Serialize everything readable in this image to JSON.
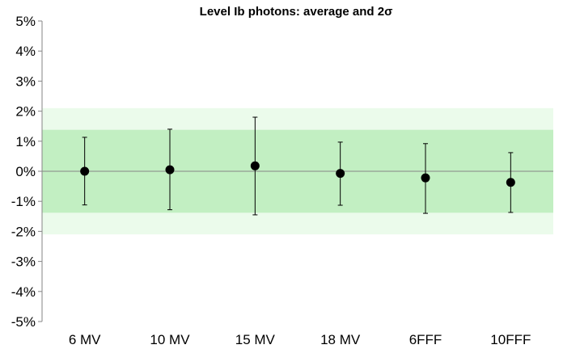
{
  "chart_data": {
    "type": "scatter",
    "title": "Level Ib photons: average and 2σ",
    "categories": [
      "6 MV",
      "10 MV",
      "15 MV",
      "18 MV",
      "6FFF",
      "10FFF"
    ],
    "series": [
      {
        "values": [
          0.0,
          0.05,
          0.18,
          -0.07,
          -0.22,
          -0.37
        ],
        "error_lower": [
          -1.12,
          -1.28,
          -1.45,
          -1.13,
          -1.4,
          -1.37
        ],
        "error_upper": [
          1.13,
          1.4,
          1.8,
          0.97,
          0.92,
          0.62
        ]
      }
    ],
    "y_ticks": [
      "5%",
      "4%",
      "3%",
      "2%",
      "1%",
      "0%",
      "-1%",
      "-2%",
      "-3%",
      "-4%",
      "-5%"
    ],
    "ylim": [
      -5,
      5
    ],
    "y_unit": "%",
    "bands": [
      {
        "from": -2.1,
        "to": 2.1,
        "color": "#ebfbeb"
      },
      {
        "from": -1.38,
        "to": 1.38,
        "color": "#c2efc2"
      }
    ],
    "grid": false,
    "legend": "none"
  }
}
